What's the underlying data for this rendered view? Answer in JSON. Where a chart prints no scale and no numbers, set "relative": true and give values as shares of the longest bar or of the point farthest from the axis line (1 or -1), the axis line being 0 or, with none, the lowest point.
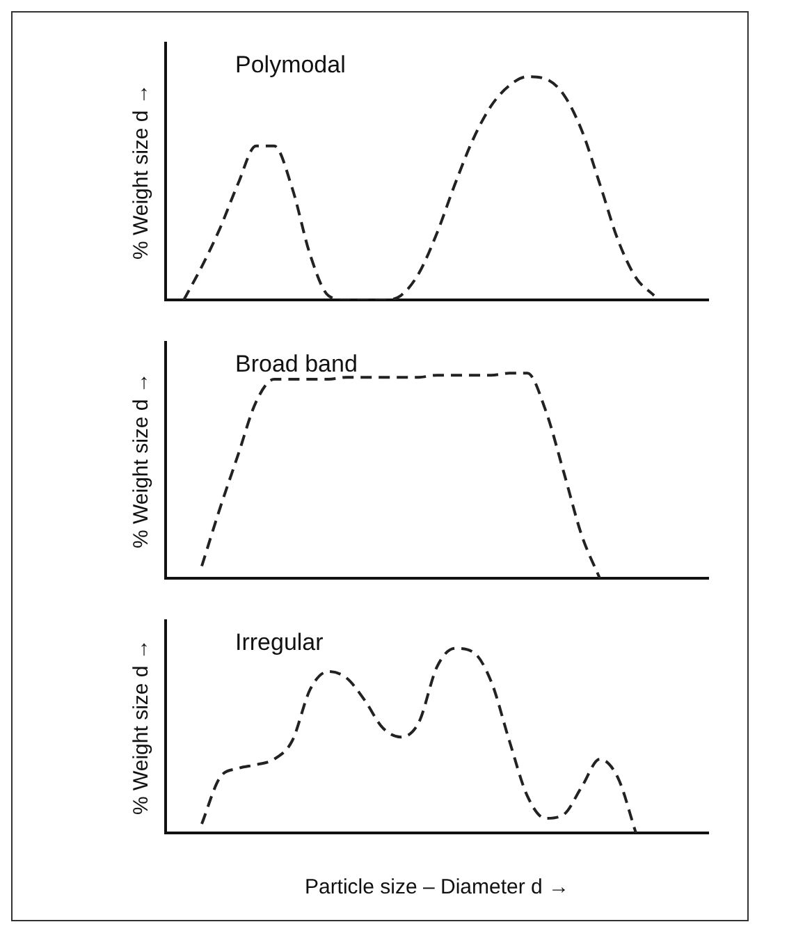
{
  "chart_data": [
    {
      "type": "line",
      "title": "Polymodal",
      "ylabel": "% Weight size d →",
      "relative": true,
      "legend": false,
      "marker": "none",
      "line_style": "dashed",
      "categories": [
        null,
        null,
        null,
        null,
        null,
        null,
        null,
        null,
        null,
        null,
        null,
        null,
        null,
        null,
        null,
        null,
        null,
        null,
        null,
        null,
        null,
        null,
        null,
        null,
        null,
        null,
        null,
        null,
        null,
        null,
        null
      ],
      "series": [
        {
          "color": "#222222",
          "values": [
            null,
            0,
            0.15,
            0.32,
            0.52,
            0.69,
            0.69,
            0.5,
            0.2,
            0.02,
            0,
            0,
            0,
            0.02,
            0.12,
            0.3,
            0.52,
            0.72,
            0.87,
            0.96,
            1.0,
            0.99,
            0.92,
            0.76,
            0.52,
            0.27,
            0.1,
            0.02,
            null,
            null,
            null
          ]
        }
      ]
    },
    {
      "type": "line",
      "title": "Broad band",
      "ylabel": "% Weight size d →",
      "relative": true,
      "legend": false,
      "marker": "none",
      "line_style": "dashed",
      "categories": [
        null,
        null,
        null,
        null,
        null,
        null,
        null,
        null,
        null,
        null,
        null,
        null,
        null,
        null,
        null,
        null,
        null,
        null,
        null,
        null,
        null,
        null,
        null,
        null,
        null,
        null,
        null,
        null,
        null,
        null,
        null
      ],
      "series": [
        {
          "color": "#222222",
          "values": [
            null,
            null,
            0.06,
            0.34,
            0.6,
            0.86,
            0.97,
            0.97,
            0.97,
            0.97,
            0.98,
            0.98,
            0.98,
            0.98,
            0.98,
            0.99,
            0.99,
            0.99,
            0.99,
            1.0,
            1.0,
            0.82,
            0.52,
            0.21,
            0,
            null,
            null,
            null,
            null,
            null,
            null
          ]
        }
      ]
    },
    {
      "type": "line",
      "title": "Irregular",
      "ylabel": "% Weight size d →",
      "xlabel": "Particle size – Diameter d →",
      "relative": true,
      "legend": false,
      "marker": "none",
      "line_style": "dashed",
      "categories": [
        null,
        null,
        null,
        null,
        null,
        null,
        null,
        null,
        null,
        null,
        null,
        null,
        null,
        null,
        null,
        null,
        null,
        null,
        null,
        null,
        null,
        null,
        null,
        null,
        null,
        null,
        null,
        null,
        null,
        null,
        null
      ],
      "series": [
        {
          "color": "#222222",
          "values": [
            null,
            null,
            0.05,
            0.3,
            0.35,
            0.37,
            0.4,
            0.5,
            0.78,
            0.875,
            0.84,
            0.72,
            0.57,
            0.52,
            0.6,
            0.9,
            1.0,
            0.98,
            0.82,
            0.5,
            0.2,
            0.08,
            0.1,
            0.25,
            0.4,
            0.3,
            0,
            null,
            null,
            null,
            null
          ]
        }
      ]
    }
  ]
}
